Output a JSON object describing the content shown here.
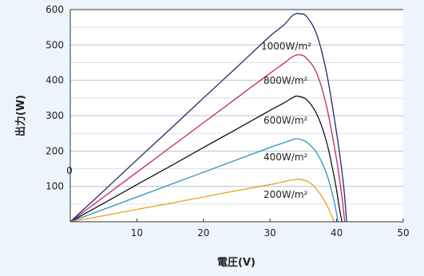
{
  "chart_data": {
    "type": "line",
    "xlabel": "電圧(V)",
    "ylabel": "出力(W)",
    "xlim": [
      0,
      50
    ],
    "ylim": [
      0,
      600
    ],
    "x_ticks": [
      10,
      20,
      30,
      40,
      50
    ],
    "y_ticks": [
      100,
      200,
      300,
      400,
      500,
      600
    ],
    "origin_label": "0",
    "grid": "horizontal",
    "series": [
      {
        "name": "1000W/m²",
        "color": "#1f2a6b",
        "points": [
          [
            0,
            0
          ],
          [
            5,
            87
          ],
          [
            10,
            175
          ],
          [
            15,
            262
          ],
          [
            20,
            350
          ],
          [
            25,
            437
          ],
          [
            30,
            525
          ],
          [
            32,
            555
          ],
          [
            33.5,
            585
          ],
          [
            34.5,
            588
          ],
          [
            35.5,
            580
          ],
          [
            37,
            530
          ],
          [
            38.5,
            420
          ],
          [
            40,
            250
          ],
          [
            41,
            110
          ],
          [
            41.5,
            0
          ]
        ]
      },
      {
        "name": "800W/m²",
        "color": "#c8206a",
        "points": [
          [
            0,
            0
          ],
          [
            5,
            70
          ],
          [
            10,
            140
          ],
          [
            15,
            210
          ],
          [
            20,
            280
          ],
          [
            25,
            350
          ],
          [
            30,
            420
          ],
          [
            32,
            447
          ],
          [
            33.5,
            468
          ],
          [
            34.5,
            472
          ],
          [
            35.5,
            462
          ],
          [
            37,
            420
          ],
          [
            38.5,
            325
          ],
          [
            40,
            175
          ],
          [
            40.8,
            70
          ],
          [
            41.2,
            0
          ]
        ]
      },
      {
        "name": "600W/m²",
        "color": "#111111",
        "points": [
          [
            0,
            0
          ],
          [
            5,
            52
          ],
          [
            10,
            105
          ],
          [
            15,
            157
          ],
          [
            20,
            210
          ],
          [
            25,
            262
          ],
          [
            30,
            315
          ],
          [
            32,
            335
          ],
          [
            33.5,
            352
          ],
          [
            34.2,
            355
          ],
          [
            35.5,
            345
          ],
          [
            37,
            305
          ],
          [
            38.5,
            225
          ],
          [
            39.8,
            110
          ],
          [
            40.4,
            40
          ],
          [
            40.8,
            0
          ]
        ]
      },
      {
        "name": "400W/m²",
        "color": "#2e8fc0",
        "points": [
          [
            0,
            0
          ],
          [
            5,
            35
          ],
          [
            10,
            70
          ],
          [
            15,
            105
          ],
          [
            20,
            140
          ],
          [
            25,
            175
          ],
          [
            30,
            210
          ],
          [
            32,
            223
          ],
          [
            33.5,
            233
          ],
          [
            34.2,
            234
          ],
          [
            35.5,
            225
          ],
          [
            37,
            195
          ],
          [
            38.5,
            135
          ],
          [
            39.6,
            60
          ],
          [
            40.2,
            0
          ]
        ]
      },
      {
        "name": "200W/m²",
        "color": "#e8a020",
        "points": [
          [
            0,
            0
          ],
          [
            5,
            17
          ],
          [
            10,
            35
          ],
          [
            15,
            52
          ],
          [
            20,
            70
          ],
          [
            25,
            88
          ],
          [
            30,
            105
          ],
          [
            32,
            113
          ],
          [
            33.5,
            119
          ],
          [
            34.5,
            120
          ],
          [
            35.8,
            112
          ],
          [
            37,
            92
          ],
          [
            38.3,
            55
          ],
          [
            39.2,
            20
          ],
          [
            39.6,
            0
          ]
        ]
      }
    ]
  }
}
